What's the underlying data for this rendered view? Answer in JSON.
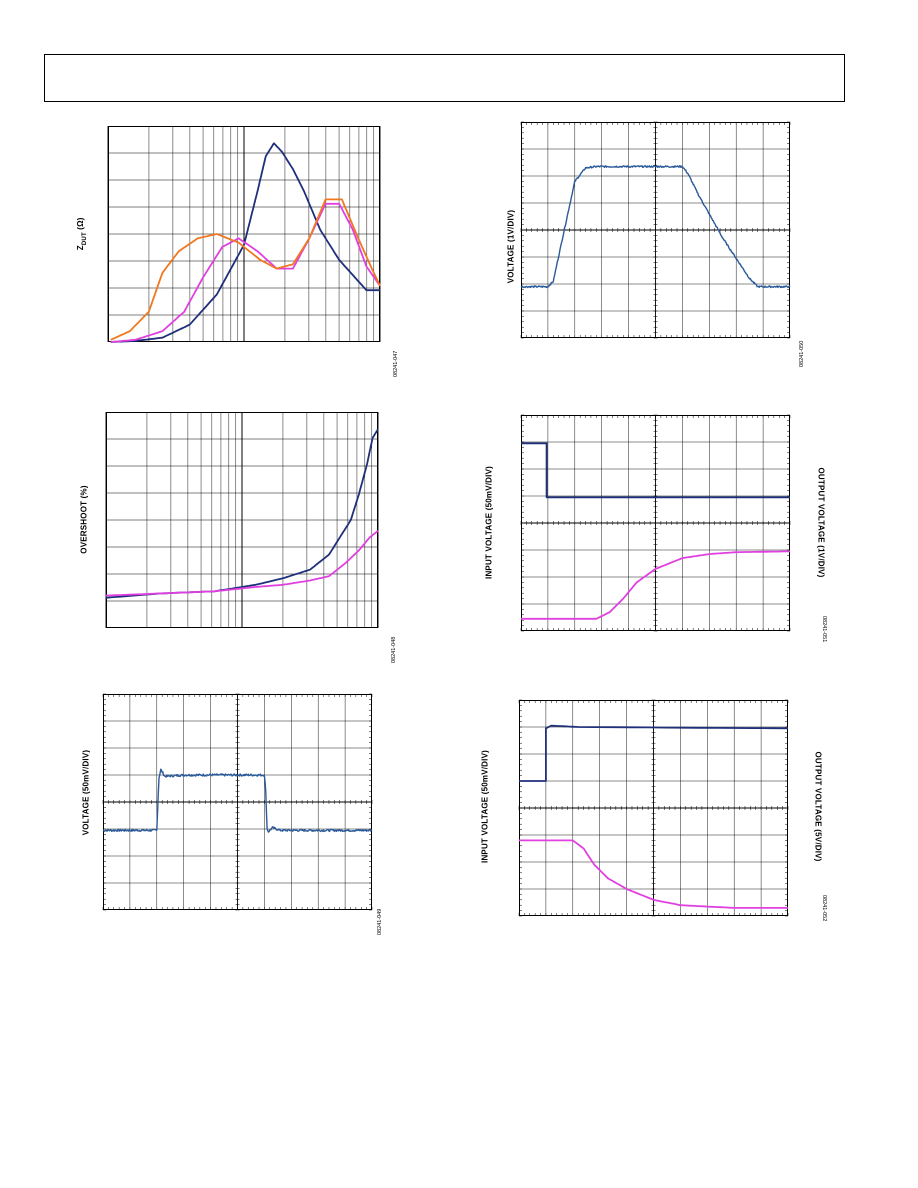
{
  "header": {
    "text": ""
  },
  "chart_data": [
    {
      "id": "zdut",
      "type": "line",
      "ylabel_main": "Z",
      "ylabel_sub": "DUT",
      "ylabel_unit": " (Ω)",
      "figure_id": "08241-047",
      "xscale": "log",
      "xlim": [
        1,
        100
      ],
      "ylim": [
        0,
        100
      ],
      "colors": {
        "grid": "#000000"
      },
      "series": [
        {
          "color": "#1f2f7a",
          "points": [
            [
              1,
              0
            ],
            [
              10,
              0.5
            ],
            [
              20,
              2
            ],
            [
              30,
              8
            ],
            [
              40,
              22
            ],
            [
              50,
              45
            ],
            [
              55,
              70
            ],
            [
              58,
              86
            ],
            [
              61,
              92
            ],
            [
              64,
              88
            ],
            [
              68,
              80
            ],
            [
              72,
              70
            ],
            [
              78,
              52
            ],
            [
              85,
              38
            ],
            [
              95,
              24
            ],
            [
              100,
              24
            ]
          ]
        },
        {
          "color": "#e040e0",
          "points": [
            [
              1,
              0
            ],
            [
              10,
              1
            ],
            [
              20,
              5
            ],
            [
              28,
              14
            ],
            [
              35,
              30
            ],
            [
              42,
              44
            ],
            [
              48,
              48
            ],
            [
              55,
              42
            ],
            [
              62,
              34
            ],
            [
              68,
              34
            ],
            [
              74,
              48
            ],
            [
              80,
              64
            ],
            [
              85,
              64
            ],
            [
              90,
              52
            ],
            [
              95,
              35
            ],
            [
              100,
              26
            ]
          ]
        },
        {
          "color": "#f07820",
          "points": [
            [
              1,
              1
            ],
            [
              8,
              5
            ],
            [
              15,
              14
            ],
            [
              20,
              32
            ],
            [
              26,
              42
            ],
            [
              33,
              48
            ],
            [
              40,
              50
            ],
            [
              48,
              46
            ],
            [
              56,
              38
            ],
            [
              62,
              34
            ],
            [
              68,
              36
            ],
            [
              74,
              48
            ],
            [
              80,
              66
            ],
            [
              86,
              66
            ],
            [
              92,
              48
            ],
            [
              97,
              34
            ],
            [
              100,
              26
            ]
          ]
        }
      ]
    },
    {
      "id": "overshoot",
      "type": "line",
      "ylabel_main": "OVERSHOOT (%)",
      "figure_id": "08241-048",
      "xscale": "log",
      "xlim": [
        1,
        100
      ],
      "ylim": [
        0,
        100
      ],
      "colors": {
        "grid": "#000000"
      },
      "series": [
        {
          "color": "#1f2f7a",
          "points": [
            [
              0,
              14
            ],
            [
              20,
              16
            ],
            [
              40,
              17
            ],
            [
              55,
              20
            ],
            [
              65,
              23
            ],
            [
              75,
              27
            ],
            [
              82,
              34
            ],
            [
              86,
              42
            ],
            [
              90,
              50
            ],
            [
              93,
              62
            ],
            [
              96,
              76
            ],
            [
              98,
              88
            ],
            [
              100,
              92
            ]
          ]
        },
        {
          "color": "#e040e0",
          "points": [
            [
              0,
              15
            ],
            [
              20,
              16
            ],
            [
              40,
              17
            ],
            [
              55,
              19
            ],
            [
              65,
              20
            ],
            [
              75,
              22
            ],
            [
              82,
              24
            ],
            [
              88,
              30
            ],
            [
              93,
              36
            ],
            [
              97,
              42
            ],
            [
              100,
              45
            ]
          ]
        }
      ]
    },
    {
      "id": "voltage1",
      "type": "line",
      "ylabel_main": "VOLTAGE (50mV/DIV)",
      "figure_id": "08241-049",
      "xlim": [
        0,
        10
      ],
      "ylim": [
        0,
        8
      ],
      "colors": {
        "grid": "#000000"
      },
      "series": [
        {
          "color": "#2a5a9a",
          "noise": 0.04,
          "points": [
            [
              0,
              2.95
            ],
            [
              2.0,
              2.95
            ],
            [
              2.08,
              4.9
            ],
            [
              2.15,
              5.2
            ],
            [
              2.3,
              4.95
            ],
            [
              3,
              5.0
            ],
            [
              6.0,
              5.0
            ],
            [
              6.05,
              4.4
            ],
            [
              6.1,
              3.0
            ],
            [
              6.15,
              2.9
            ],
            [
              6.3,
              3.05
            ],
            [
              6.6,
              2.95
            ],
            [
              10,
              2.95
            ]
          ]
        }
      ]
    },
    {
      "id": "voltage2",
      "type": "line",
      "ylabel_main": "VOLTAGE (1V/DIV)",
      "figure_id": "08241-050",
      "xlim": [
        0,
        10
      ],
      "ylim": [
        0,
        8
      ],
      "colors": {
        "grid": "#000000"
      },
      "series": [
        {
          "color": "#2a5a9a",
          "noise": 0.03,
          "points": [
            [
              0,
              1.9
            ],
            [
              1.0,
              1.9
            ],
            [
              1.2,
              2.1
            ],
            [
              1.5,
              3.5
            ],
            [
              2.0,
              5.8
            ],
            [
              2.4,
              6.3
            ],
            [
              2.8,
              6.35
            ],
            [
              6.0,
              6.35
            ],
            [
              6.2,
              6.1
            ],
            [
              6.6,
              5.3
            ],
            [
              7.5,
              3.7
            ],
            [
              8.5,
              2.2
            ],
            [
              8.8,
              1.9
            ],
            [
              10,
              1.9
            ]
          ]
        }
      ]
    },
    {
      "id": "inout1",
      "type": "line",
      "ylabel_main": "INPUT VOLTAGE (50mV/DIV)",
      "ylabel_right": "OUTPUT VOLTAGE (1V/DIV)",
      "figure_id": "08241-051",
      "xlim": [
        0,
        10
      ],
      "ylim": [
        0,
        8
      ],
      "colors": {
        "grid": "#000000"
      },
      "series": [
        {
          "color": "#1f2f7a",
          "points": [
            [
              0,
              6.95
            ],
            [
              0.95,
              6.95
            ],
            [
              0.95,
              4.95
            ],
            [
              10,
              4.95
            ]
          ]
        },
        {
          "color": "#e040e0",
          "points": [
            [
              0,
              0.45
            ],
            [
              2.8,
              0.45
            ],
            [
              3.3,
              0.7
            ],
            [
              3.8,
              1.2
            ],
            [
              4.3,
              1.8
            ],
            [
              5,
              2.3
            ],
            [
              6,
              2.7
            ],
            [
              7,
              2.85
            ],
            [
              8,
              2.92
            ],
            [
              10,
              2.95
            ]
          ]
        }
      ]
    },
    {
      "id": "inout2",
      "type": "line",
      "ylabel_main": "INPUT VOLTAGE (50mV/DIV)",
      "ylabel_right": "OUTPUT VOLTAGE (5V/DIV)",
      "figure_id": "08241-052",
      "xlim": [
        0,
        10
      ],
      "ylim": [
        0,
        8
      ],
      "colors": {
        "grid": "#000000"
      },
      "series": [
        {
          "color": "#1f2f7a",
          "points": [
            [
              0,
              5.0
            ],
            [
              1.0,
              5.0
            ],
            [
              1.0,
              6.95
            ],
            [
              1.2,
              7.05
            ],
            [
              2.2,
              7.0
            ],
            [
              10,
              6.95
            ]
          ]
        },
        {
          "color": "#e040e0",
          "points": [
            [
              0,
              2.8
            ],
            [
              2.0,
              2.8
            ],
            [
              2.4,
              2.5
            ],
            [
              2.8,
              1.9
            ],
            [
              3.3,
              1.4
            ],
            [
              4,
              1.0
            ],
            [
              5,
              0.6
            ],
            [
              6,
              0.4
            ],
            [
              8,
              0.3
            ],
            [
              10,
              0.3
            ]
          ]
        }
      ]
    }
  ]
}
